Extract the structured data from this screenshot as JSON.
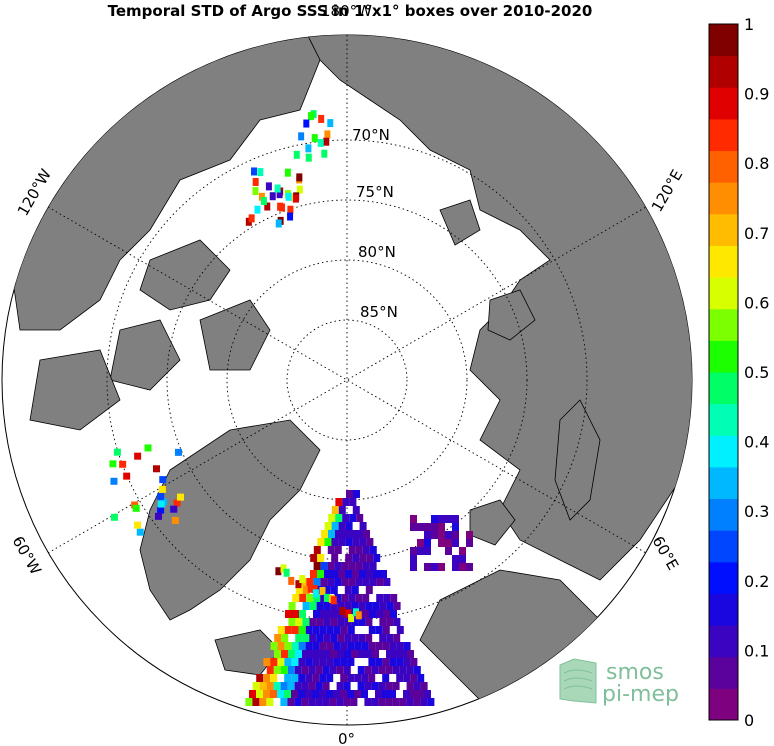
{
  "title": "Temporal STD of Argo SSS in 1°x1° boxes over 2010-2020",
  "map": {
    "projection": "north-polar-stereographic",
    "longitude_labels": {
      "top": "180°W",
      "upper_left": "120°W",
      "upper_right": "120°E",
      "lower_left": "60°W",
      "lower_right": "60°E",
      "bottom": "0°"
    },
    "latitude_labels": [
      "70°N",
      "75°N",
      "80°N",
      "85°N"
    ],
    "colors": {
      "land": "#808080",
      "ocean": "#ffffff",
      "coast": "#000000"
    }
  },
  "colorbar": {
    "ticks": [
      "0",
      "0.1",
      "0.2",
      "0.3",
      "0.4",
      "0.5",
      "0.6",
      "0.7",
      "0.8",
      "0.9",
      "1"
    ],
    "min": 0,
    "max": 1,
    "colormap": [
      "#7e017f",
      "#5b029c",
      "#3a04c0",
      "#1a07e0",
      "#0010ff",
      "#0046ff",
      "#0080ff",
      "#00b8ff",
      "#00f0ff",
      "#00ffb4",
      "#00ff66",
      "#1cff00",
      "#7cff00",
      "#d8ff00",
      "#ffe800",
      "#ffbc00",
      "#ff8e00",
      "#ff6000",
      "#ff2a00",
      "#e00000",
      "#b00000",
      "#800000"
    ]
  },
  "logo": {
    "line1": "smos",
    "line2": "pi-mep",
    "color": "#7fbf9a"
  }
}
